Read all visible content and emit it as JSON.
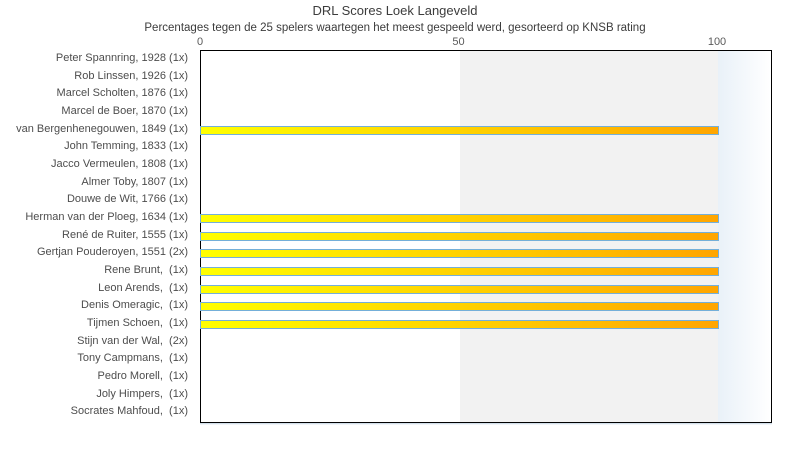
{
  "chart_data": {
    "type": "bar",
    "orientation": "horizontal",
    "title": "DRL Scores Loek Langeveld",
    "subtitle": "Percentages tegen de 25 spelers waartegen het meest gespeeld werd, gesorteerd op KNSB rating",
    "xlabel": "",
    "ylabel": "",
    "legend": "none",
    "grid": false,
    "axis_ticks": [
      0,
      50,
      100
    ],
    "xlim": [
      0,
      110
    ],
    "plot_band": {
      "from": 50,
      "to": 100,
      "color": "#f2f2f2"
    },
    "categories": [
      "Peter Spannring, 1928 (1x)",
      "Rob Linssen, 1926 (1x)",
      "Marcel Scholten, 1876 (1x)",
      "Marcel de Boer, 1870 (1x)",
      "van Bergenhenegouwen, 1849 (1x)",
      "John Temming, 1833 (1x)",
      "Jacco Vermeulen, 1808 (1x)",
      "Almer Toby, 1807 (1x)",
      "Douwe de Wit, 1766 (1x)",
      "Herman van der Ploeg, 1634 (1x)",
      "René de Ruiter, 1555 (1x)",
      "Gertjan Pouderoyen, 1551 (2x)",
      "Rene Brunt,  (1x)",
      "Leon Arends,  (1x)",
      "Denis Omeragic,  (1x)",
      "Tijmen Schoen,  (1x)",
      "Stijn van der Wal,  (2x)",
      "Tony Campmans,  (1x)",
      "Pedro Morell,  (1x)",
      "Joly Himpers,  (1x)",
      "Socrates Mahfoud,  (1x)"
    ],
    "values": [
      0,
      0,
      0,
      0,
      100,
      0,
      0,
      0,
      0,
      100,
      100,
      100,
      100,
      100,
      100,
      100,
      0,
      0,
      0,
      0,
      0
    ],
    "colors": {
      "bar_gradient_start": "#ffff00",
      "bar_gradient_end": "#ffa500",
      "bar_border": "#74afd9",
      "band": "#f2f2f2",
      "fade_start": "#e9f1f8",
      "fade_end": "#ffffff",
      "plot_border": "#000000",
      "title_text": "#3c3c3c",
      "label_text": "#4d4d4d",
      "tick_text": "#5a5a5a"
    }
  }
}
